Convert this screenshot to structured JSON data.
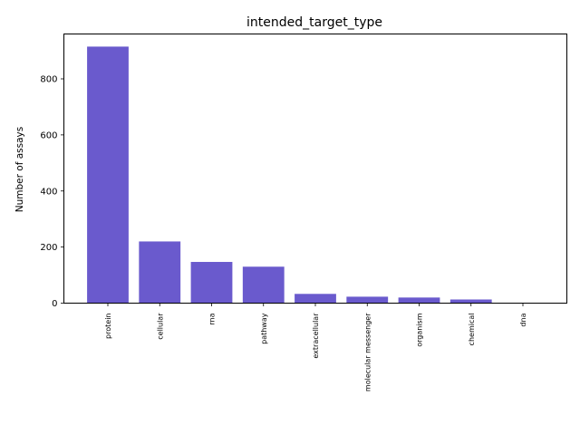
{
  "chart_data": {
    "type": "bar",
    "title": "intended_target_type",
    "xlabel": "",
    "ylabel": "Number of assays",
    "categories": [
      "protein",
      "cellular",
      "rna",
      "pathway",
      "extracellular",
      "molecular messenger",
      "organism",
      "chemical",
      "dna"
    ],
    "values": [
      915,
      220,
      147,
      130,
      33,
      23,
      20,
      13,
      1
    ],
    "ylim": [
      0,
      960
    ],
    "yticks": [
      0,
      200,
      400,
      600,
      800
    ],
    "bar_color": "#6a5acd",
    "grid": false,
    "legend": "none"
  }
}
